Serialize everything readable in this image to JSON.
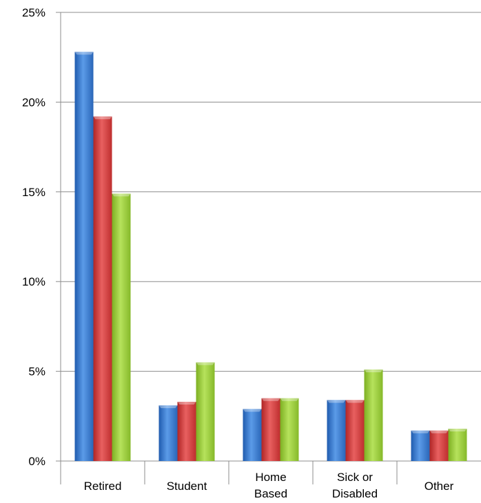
{
  "chart_data": {
    "type": "bar",
    "categories": [
      [
        "Retired"
      ],
      [
        "Student"
      ],
      [
        "Home",
        "Based"
      ],
      [
        "Sick or",
        "Disabled"
      ],
      [
        "Other"
      ]
    ],
    "series": [
      {
        "color": "#3F7FD4",
        "values": [
          22.8,
          3.1,
          2.9,
          3.4,
          1.7
        ]
      },
      {
        "color": "#D64545",
        "values": [
          19.2,
          3.3,
          3.5,
          3.4,
          1.7
        ]
      },
      {
        "color": "#9ACD3C",
        "values": [
          14.9,
          5.5,
          3.5,
          5.1,
          1.8
        ]
      }
    ],
    "y_ticks": [
      "0%",
      "5%",
      "10%",
      "15%",
      "20%",
      "25%"
    ],
    "ylim": [
      0,
      25
    ],
    "y_step": 5,
    "grid": true,
    "legend": "none"
  }
}
